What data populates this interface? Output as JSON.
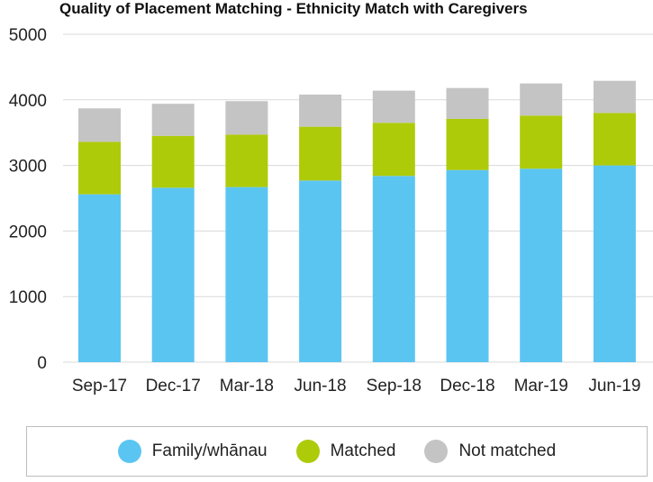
{
  "chart_data": {
    "type": "bar",
    "stacked": true,
    "title": "Quality of Placement Matching - Ethnicity Match with Caregivers",
    "categories": [
      "Sep-17",
      "Dec-17",
      "Mar-18",
      "Jun-18",
      "Sep-18",
      "Dec-18",
      "Mar-19",
      "Jun-19"
    ],
    "series": [
      {
        "name": "Family/whānau",
        "color": "#5bc5f2",
        "values": [
          2560,
          2660,
          2670,
          2770,
          2840,
          2930,
          2950,
          3000
        ]
      },
      {
        "name": "Matched",
        "color": "#aecb0a",
        "values": [
          800,
          790,
          800,
          820,
          810,
          780,
          810,
          800
        ]
      },
      {
        "name": "Not matched",
        "color": "#c4c4c4",
        "values": [
          510,
          490,
          510,
          490,
          490,
          470,
          490,
          490
        ]
      }
    ],
    "ylim": [
      0,
      5000
    ],
    "yticks": [
      0,
      1000,
      2000,
      3000,
      4000,
      5000
    ],
    "grid": true,
    "legend_position": "bottom"
  }
}
